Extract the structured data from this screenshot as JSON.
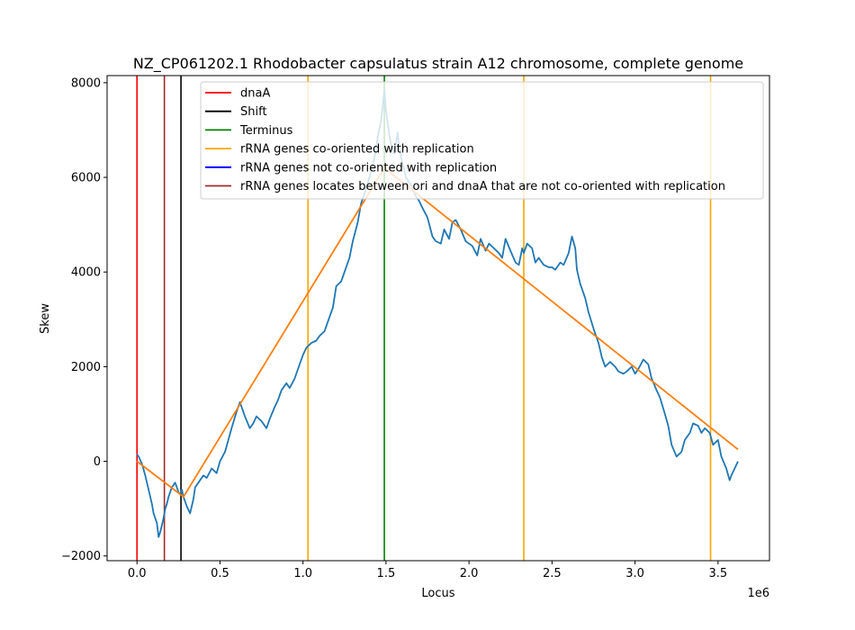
{
  "chart_data": {
    "type": "line",
    "title": "NZ_CP061202.1 Rhodobacter capsulatus strain A12 chromosome, complete genome",
    "xlabel": "Locus",
    "ylabel": "Skew",
    "x_offset_label": "1e6",
    "xlim": [
      -0.18,
      3.81
    ],
    "ylim": [
      -2100,
      8150
    ],
    "x_ticks": [
      {
        "value": 0.0,
        "label": "0.0"
      },
      {
        "value": 0.5,
        "label": "0.5"
      },
      {
        "value": 1.0,
        "label": "1.0"
      },
      {
        "value": 1.5,
        "label": "1.5"
      },
      {
        "value": 2.0,
        "label": "2.0"
      },
      {
        "value": 2.5,
        "label": "2.5"
      },
      {
        "value": 3.0,
        "label": "3.0"
      },
      {
        "value": 3.5,
        "label": "3.5"
      }
    ],
    "y_ticks": [
      {
        "value": -2000,
        "label": "−2000"
      },
      {
        "value": 0,
        "label": "0"
      },
      {
        "value": 2000,
        "label": "2000"
      },
      {
        "value": 4000,
        "label": "4000"
      },
      {
        "value": 6000,
        "label": "6000"
      },
      {
        "value": 8000,
        "label": "8000"
      }
    ],
    "grid": false,
    "legend_position": "top-right",
    "vlines": [
      {
        "x": 0.0,
        "color": "#ff0000",
        "series": "dnaA"
      },
      {
        "x": 0.165,
        "color": "#a52a2a",
        "series": "rRNA genes locates between ori and dnaA that are not co-oriented with replication"
      },
      {
        "x": 0.265,
        "color": "#000000",
        "series": "Shift"
      },
      {
        "x": 1.49,
        "color": "#008000",
        "series": "Terminus"
      },
      {
        "x": 1.03,
        "color": "#ffa500",
        "series": "rRNA genes co-oriented with replication"
      },
      {
        "x": 2.33,
        "color": "#ffa500",
        "series": "rRNA genes co-oriented with replication"
      },
      {
        "x": 3.455,
        "color": "#ffa500",
        "series": "rRNA genes co-oriented with replication"
      }
    ],
    "legend": [
      {
        "label": "dnaA",
        "color": "#ff0000"
      },
      {
        "label": "Shift",
        "color": "#000000"
      },
      {
        "label": "Terminus",
        "color": "#008000"
      },
      {
        "label": "rRNA genes co-oriented with replication",
        "color": "#ffa500"
      },
      {
        "label": "rRNA genes not co-oriented with replication",
        "color": "#0000ff"
      },
      {
        "label": "rRNA genes locates between ori and dnaA that are not co-oriented with replication",
        "color": "#a52a2a"
      }
    ],
    "series": [
      {
        "color": "#1f77b4",
        "x": [
          0.0,
          0.01,
          0.03,
          0.05,
          0.07,
          0.09,
          0.1,
          0.12,
          0.13,
          0.14,
          0.15,
          0.16,
          0.17,
          0.18,
          0.19,
          0.2,
          0.21,
          0.22,
          0.23,
          0.24,
          0.25,
          0.26,
          0.27,
          0.28,
          0.3,
          0.32,
          0.34,
          0.35,
          0.37,
          0.4,
          0.42,
          0.45,
          0.48,
          0.5,
          0.53,
          0.55,
          0.57,
          0.6,
          0.62,
          0.65,
          0.68,
          0.7,
          0.72,
          0.75,
          0.78,
          0.8,
          0.83,
          0.85,
          0.87,
          0.9,
          0.92,
          0.95,
          0.97,
          1.0,
          1.02,
          1.05,
          1.08,
          1.1,
          1.13,
          1.15,
          1.18,
          1.2,
          1.23,
          1.25,
          1.28,
          1.3,
          1.33,
          1.35,
          1.38,
          1.4,
          1.43,
          1.45,
          1.47,
          1.48,
          1.49,
          1.5,
          1.52,
          1.53,
          1.55,
          1.57,
          1.58,
          1.6,
          1.62,
          1.65,
          1.68,
          1.7,
          1.72,
          1.75,
          1.78,
          1.8,
          1.83,
          1.85,
          1.88,
          1.9,
          1.92,
          1.95,
          1.98,
          2.0,
          2.02,
          2.05,
          2.07,
          2.1,
          2.12,
          2.15,
          2.18,
          2.2,
          2.22,
          2.25,
          2.28,
          2.3,
          2.32,
          2.33,
          2.35,
          2.38,
          2.4,
          2.42,
          2.45,
          2.48,
          2.5,
          2.52,
          2.55,
          2.57,
          2.6,
          2.62,
          2.64,
          2.65,
          2.67,
          2.7,
          2.72,
          2.75,
          2.78,
          2.8,
          2.82,
          2.85,
          2.88,
          2.9,
          2.93,
          2.95,
          2.98,
          3.0,
          3.02,
          3.05,
          3.08,
          3.1,
          3.13,
          3.15,
          3.18,
          3.2,
          3.22,
          3.25,
          3.28,
          3.3,
          3.33,
          3.35,
          3.38,
          3.4,
          3.42,
          3.45,
          3.47,
          3.5,
          3.52,
          3.55,
          3.57,
          3.58,
          3.6,
          3.62
        ],
        "y": [
          150,
          100,
          -50,
          -300,
          -600,
          -900,
          -1100,
          -1300,
          -1600,
          -1500,
          -1350,
          -1200,
          -1000,
          -900,
          -750,
          -650,
          -550,
          -500,
          -450,
          -550,
          -650,
          -700,
          -600,
          -750,
          -950,
          -1100,
          -800,
          -550,
          -450,
          -300,
          -350,
          -150,
          -250,
          0,
          200,
          450,
          700,
          1050,
          1250,
          950,
          700,
          800,
          950,
          850,
          700,
          900,
          1150,
          1300,
          1500,
          1650,
          1550,
          1750,
          1950,
          2250,
          2400,
          2500,
          2550,
          2650,
          2750,
          2950,
          3250,
          3700,
          3800,
          4000,
          4300,
          4650,
          5050,
          5450,
          5750,
          6000,
          6400,
          6850,
          7200,
          7500,
          7850,
          7400,
          6900,
          6700,
          6500,
          6950,
          6600,
          6300,
          6000,
          5850,
          5600,
          5500,
          5350,
          5150,
          4750,
          4650,
          4600,
          4900,
          4700,
          5050,
          5100,
          4900,
          4650,
          4600,
          4550,
          4350,
          4700,
          4450,
          4600,
          4500,
          4400,
          4300,
          4700,
          4450,
          4200,
          4150,
          4500,
          4400,
          4600,
          4500,
          4200,
          4300,
          4150,
          4100,
          4100,
          4050,
          4200,
          4150,
          4400,
          4750,
          4500,
          4050,
          3750,
          3450,
          3150,
          2800,
          2500,
          2200,
          2000,
          2100,
          2000,
          1900,
          1850,
          1900,
          2000,
          1850,
          1950,
          2150,
          2050,
          1750,
          1500,
          1350,
          1000,
          750,
          350,
          100,
          200,
          450,
          600,
          800,
          750,
          600,
          700,
          600,
          350,
          450,
          100,
          -150,
          -400,
          -300,
          -150,
          0
        ]
      },
      {
        "color": "#ff7f0e",
        "x": [
          0.0,
          0.28,
          1.49,
          3.62
        ],
        "y": [
          0,
          -750,
          6200,
          250
        ]
      }
    ]
  }
}
